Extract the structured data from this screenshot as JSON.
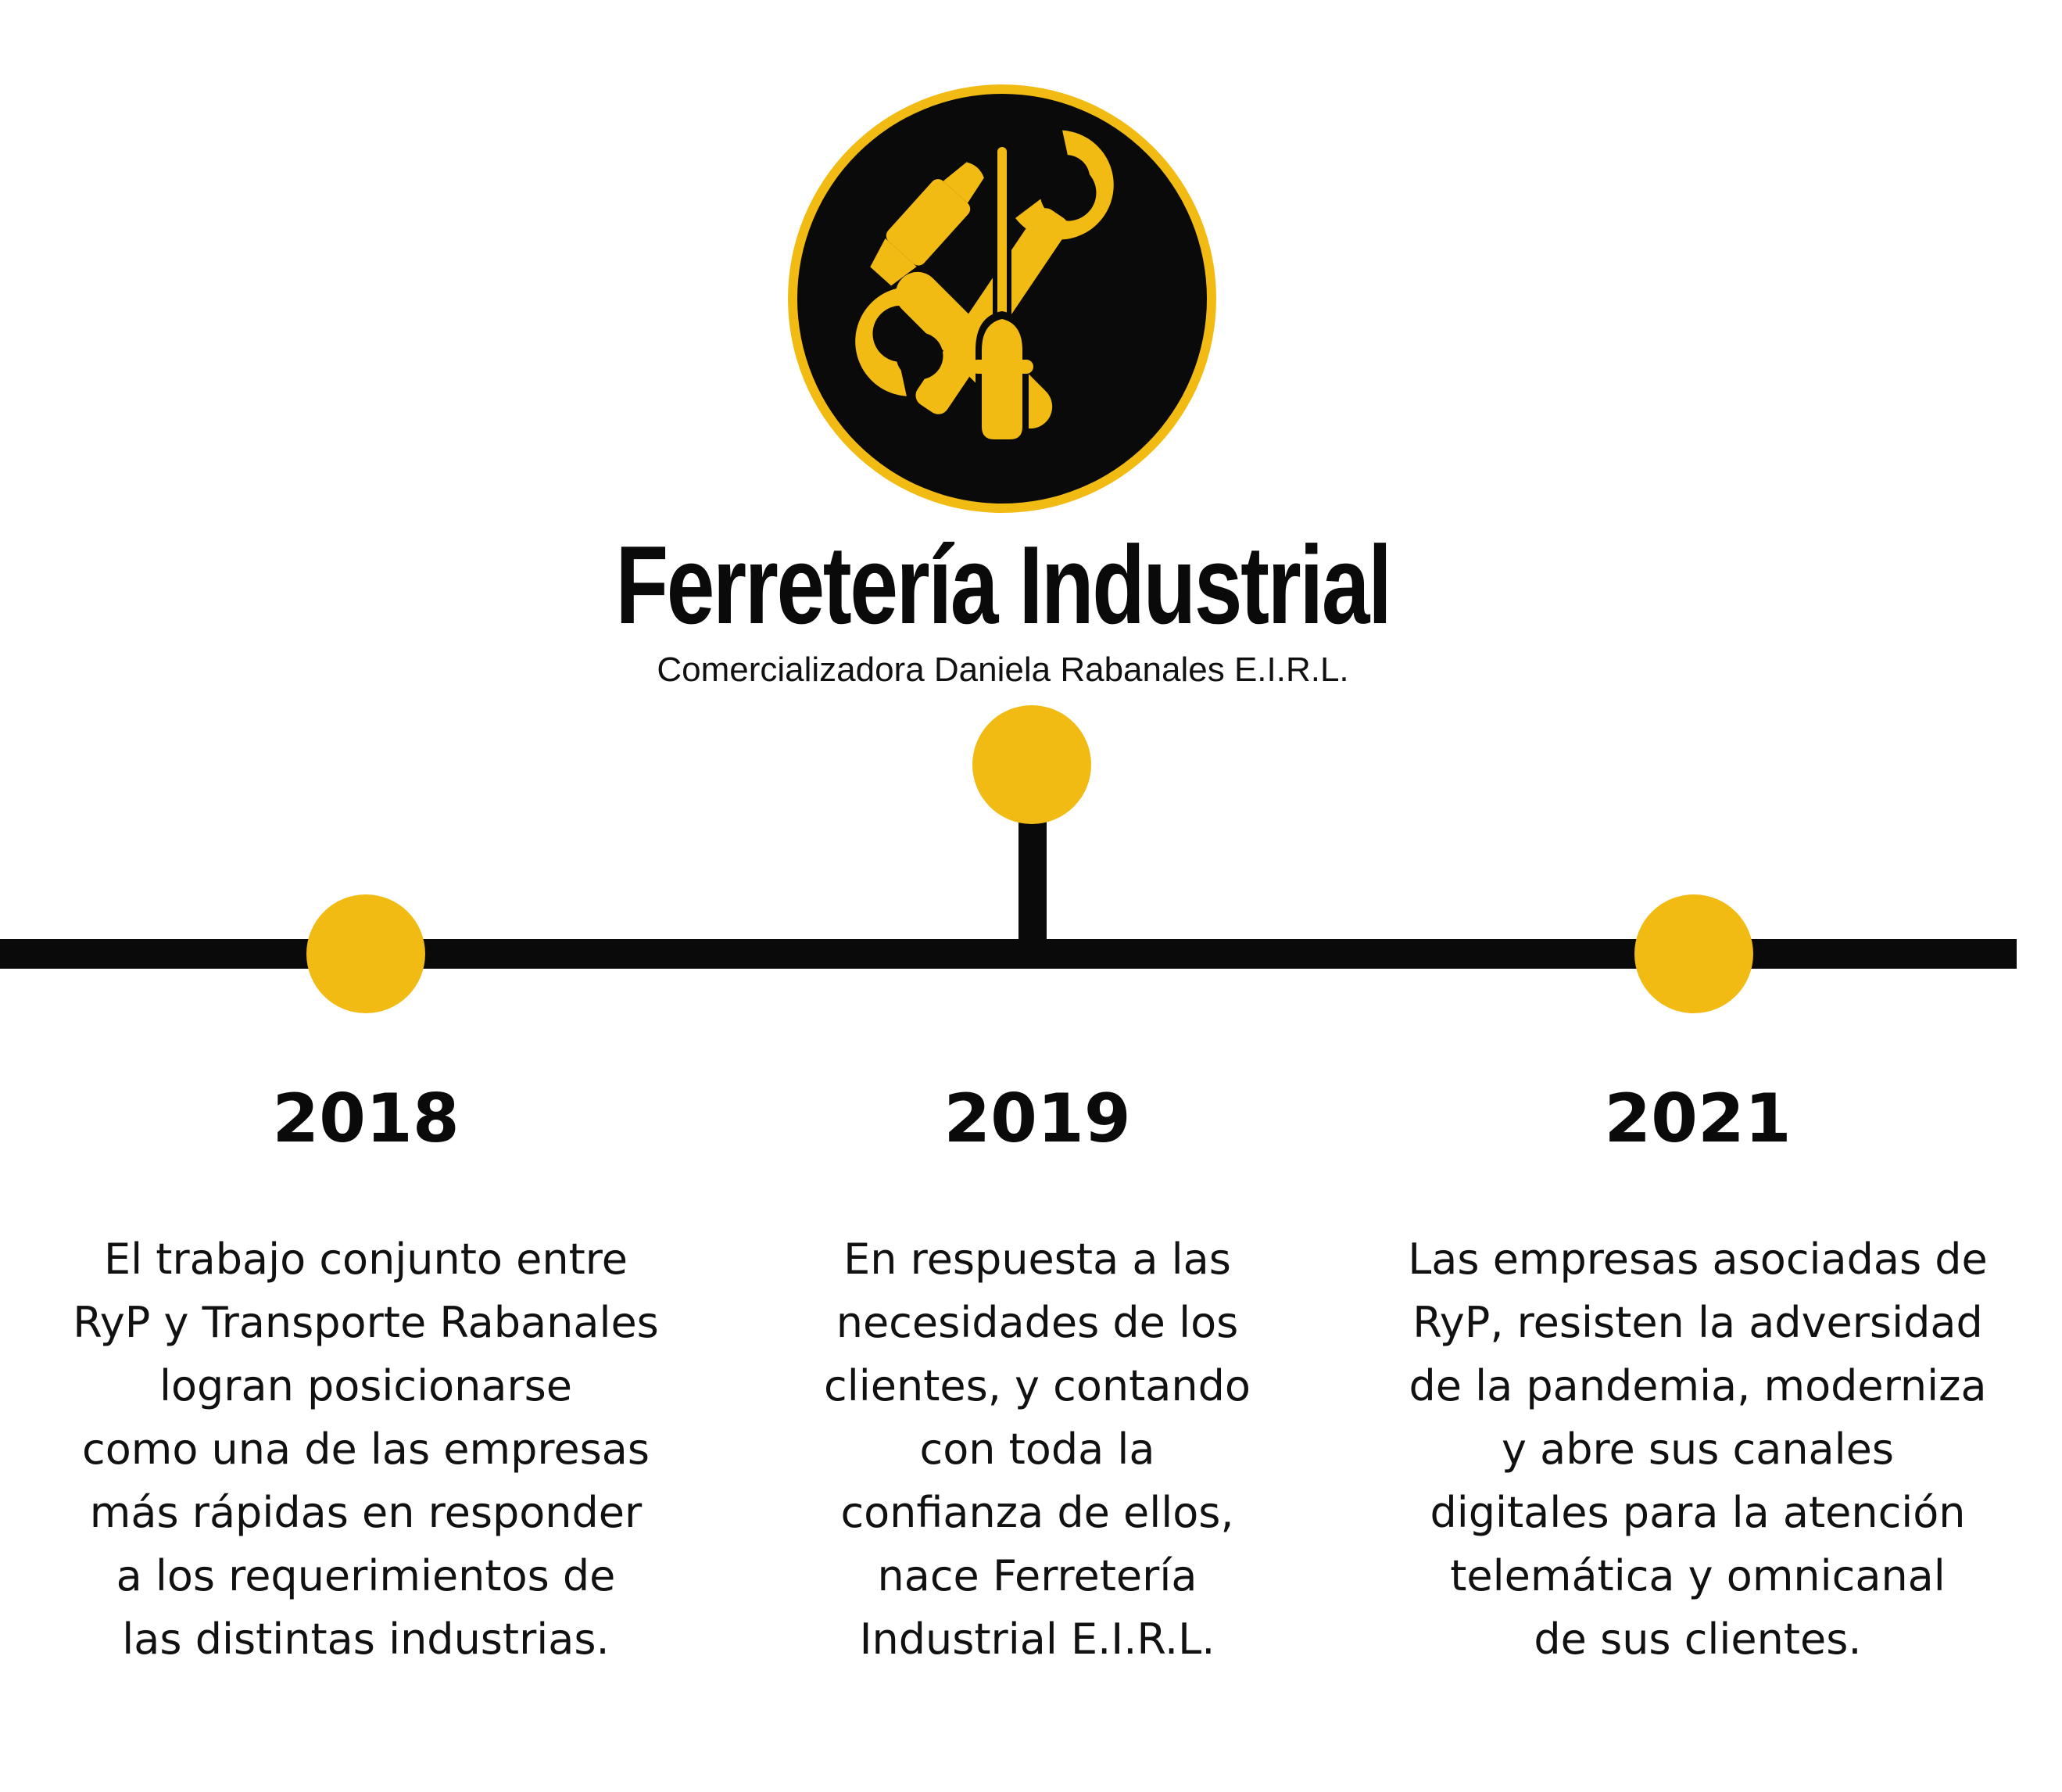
{
  "brand": {
    "name": "Ferretería Industrial",
    "company": "Comercializadora Daniela Rabanales E.I.R.L."
  },
  "colors": {
    "accent": "#F2BB13",
    "dark": "#0A0A0A"
  },
  "icons": [
    "hammer-icon",
    "screwdriver-icon",
    "wrench-icon"
  ],
  "milestones": [
    {
      "year": "2018",
      "lines": [
        "El trabajo conjunto entre",
        "RyP y Transporte Rabanales",
        "logran posicionarse",
        "como una de las empresas",
        "más rápidas en responder",
        "a los requerimientos de",
        "las distintas industrias."
      ]
    },
    {
      "year": "2019",
      "lines": [
        "En respuesta a las",
        "necesidades de los",
        "clientes, y contando",
        "con toda la",
        "confianza de ellos,",
        "nace Ferretería",
        "Industrial E.I.R.L."
      ]
    },
    {
      "year": "2021",
      "lines": [
        "Las empresas asociadas de",
        "RyP, resisten la adversidad",
        "de la pandemia, moderniza",
        "y abre sus canales",
        "digitales para la atención",
        "telemática y omnicanal",
        "de sus clientes."
      ]
    }
  ]
}
